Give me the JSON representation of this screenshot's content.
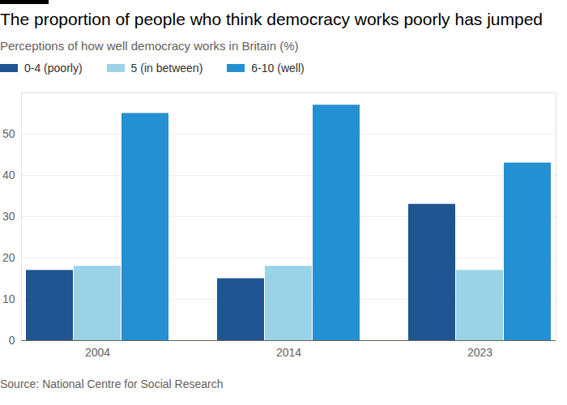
{
  "chart_data": {
    "type": "bar",
    "title": "The proportion of people who think democracy works poorly has jumped",
    "subtitle": "Perceptions of how well democracy works in Britain (%)",
    "source": "Source: National Centre for Social Research",
    "categories": [
      "2004",
      "2014",
      "2023"
    ],
    "series": [
      {
        "name": "0-4 (poorly)",
        "color": "#1f5590",
        "values": [
          17,
          15,
          33
        ]
      },
      {
        "name": "5 (in between)",
        "color": "#9ad3e6",
        "values": [
          18,
          18,
          17
        ]
      },
      {
        "name": "6-10 (well)",
        "color": "#2490d2",
        "values": [
          55,
          57,
          43
        ]
      }
    ],
    "ylim": [
      0,
      60
    ],
    "yticks": [
      0,
      10,
      20,
      30,
      40,
      50
    ],
    "grid": true,
    "legend": "top-left"
  }
}
